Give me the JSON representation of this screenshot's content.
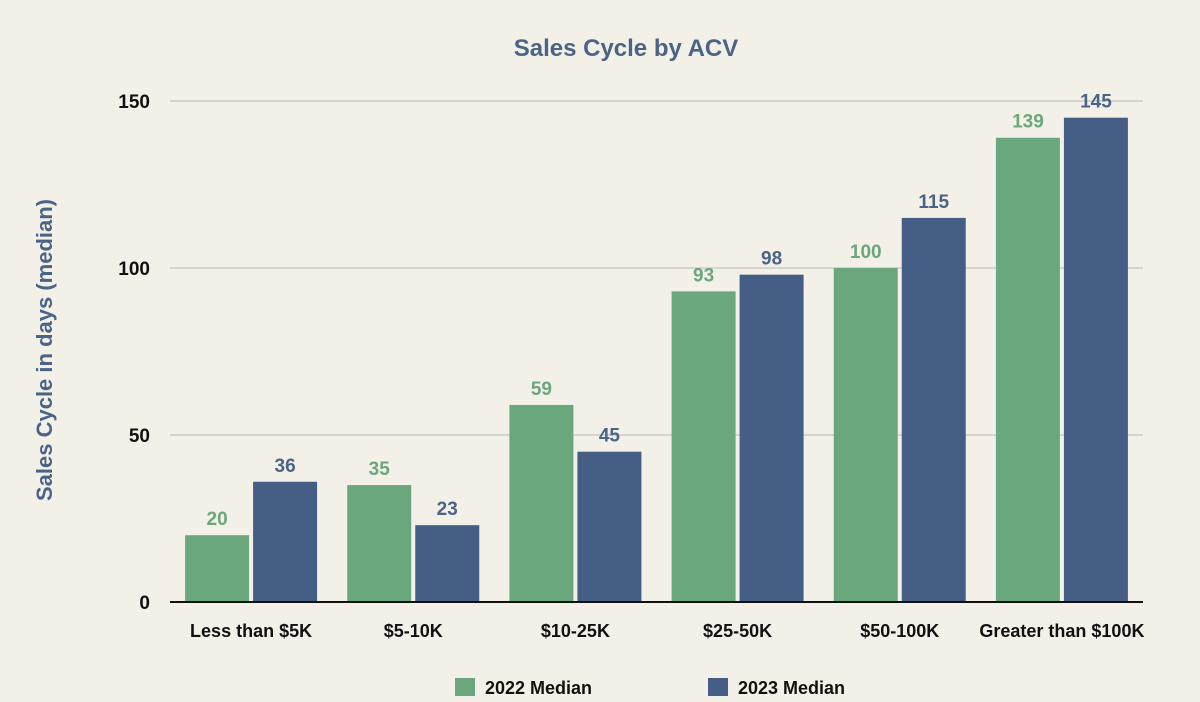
{
  "chart_data": {
    "type": "bar",
    "title": "Sales Cycle by ACV",
    "xlabel": "",
    "ylabel": "Sales Cycle in days (median)",
    "ylim": [
      0,
      150
    ],
    "yticks": [
      0,
      50,
      100,
      150
    ],
    "grid": true,
    "legend_position": "bottom",
    "categories": [
      "Less than $5K",
      "$5-10K",
      "$10-25K",
      "$25-50K",
      "$50-100K",
      "Greater than $100K"
    ],
    "series": [
      {
        "name": "2022 Median",
        "color": "#6ba77c",
        "label_color": "#6ba77c",
        "values": [
          20,
          35,
          59,
          93,
          100,
          139
        ]
      },
      {
        "name": "2023 Median",
        "color": "#445e85",
        "label_color": "#4a6488",
        "values": [
          36,
          23,
          45,
          98,
          115,
          145
        ]
      }
    ]
  }
}
